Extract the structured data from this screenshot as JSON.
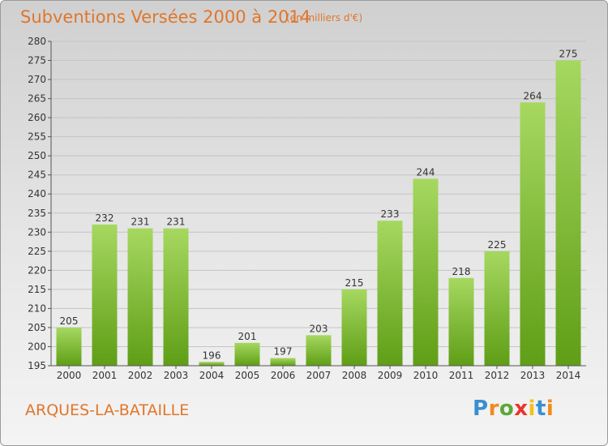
{
  "title": "Subventions Versées 2000 à 2014",
  "unit": "(en milliers d'€)",
  "commune": "ARQUES-LA-BATAILLE",
  "logo": {
    "letters": [
      "P",
      "r",
      "o",
      "x",
      "i",
      "t",
      "i"
    ],
    "colors": [
      "#3a8fd0",
      "#f18a1c",
      "#5aa83a",
      "#e8352b",
      "#f4c020",
      "#3a8fd0",
      "#f18a1c"
    ]
  },
  "colors": {
    "bar_light": "#a6d860",
    "bar_dark": "#5f9e16",
    "accent": "#e0762b"
  },
  "chart_data": {
    "type": "bar",
    "title": "Subventions Versées 2000 à 2014",
    "subtitle": "(en milliers d'€)",
    "categories": [
      "2000",
      "2001",
      "2002",
      "2003",
      "2004",
      "2005",
      "2006",
      "2007",
      "2008",
      "2009",
      "2010",
      "2011",
      "2012",
      "2013",
      "2014"
    ],
    "values": [
      205,
      232,
      231,
      231,
      196,
      201,
      197,
      203,
      215,
      233,
      244,
      218,
      225,
      264,
      275
    ],
    "ylim": [
      195,
      280
    ],
    "yticks": [
      195,
      200,
      205,
      210,
      215,
      220,
      225,
      230,
      235,
      240,
      245,
      250,
      255,
      260,
      265,
      270,
      275,
      280
    ],
    "grid": true,
    "xlabel": "",
    "ylabel": ""
  }
}
